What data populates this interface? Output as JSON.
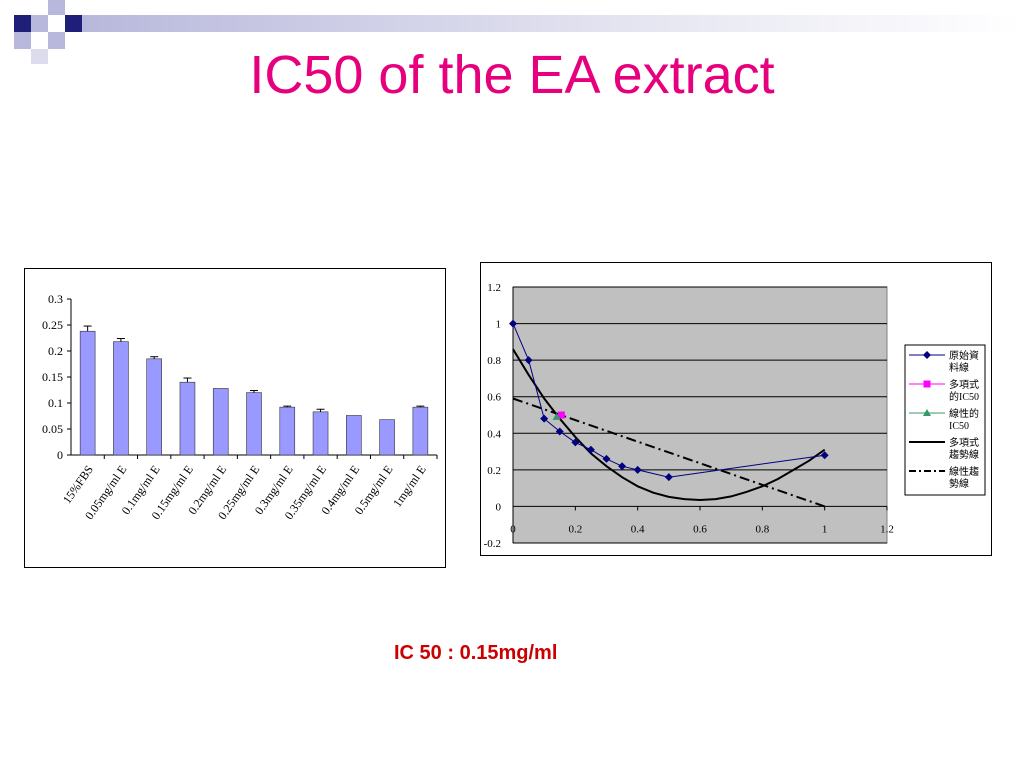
{
  "slide": {
    "title": "IC50 of the EA extract",
    "result": "IC 50 : 0.15mg/ml"
  },
  "colors": {
    "title": "#e6007e",
    "result": "#cc0000",
    "bar_fill": "#9999ff",
    "plot_bg": "#c0c0c0",
    "deco_navy": "#1f1f7a",
    "deco_light": "#b8b8dc"
  },
  "chart_data": [
    {
      "type": "bar",
      "categories": [
        "15%FBS",
        "0.05mg/ml E",
        "0.1mg/ml E",
        "0.15mg/ml E",
        "0.2mg/ml E",
        "0.25mg/ml E",
        "0.3mg/ml E",
        "0.35mg/ml E",
        "0.4mg/ml E",
        "0.5mg/ml E",
        "1mg/ml E"
      ],
      "values": [
        0.238,
        0.218,
        0.185,
        0.14,
        0.128,
        0.12,
        0.092,
        0.083,
        0.076,
        0.068,
        0.092
      ],
      "errors": [
        0.01,
        0.006,
        0.004,
        0.008,
        0.0,
        0.004,
        0.002,
        0.005,
        0.0,
        0.0,
        0.002
      ],
      "yticks": [
        "0",
        "0.05",
        "0.1",
        "0.15",
        "0.2",
        "0.25",
        "0.3"
      ],
      "ylim": [
        0,
        0.3
      ],
      "grid": false,
      "legend": "none"
    },
    {
      "type": "line",
      "xlim": [
        0,
        1.2
      ],
      "ylim": [
        -0.2,
        1.2
      ],
      "xticks": [
        "0",
        "0.2",
        "0.4",
        "0.6",
        "0.8",
        "1",
        "1.2"
      ],
      "yticks": [
        "-0.2",
        "0",
        "0.2",
        "0.4",
        "0.6",
        "0.8",
        "1",
        "1.2"
      ],
      "grid": true,
      "legend_position": "right",
      "series": [
        {
          "name": "原始資料線",
          "color": "#000080",
          "marker": "diamond",
          "points": [
            [
              0,
              1.0
            ],
            [
              0.05,
              0.8
            ],
            [
              0.1,
              0.48
            ],
            [
              0.15,
              0.41
            ],
            [
              0.2,
              0.35
            ],
            [
              0.25,
              0.31
            ],
            [
              0.3,
              0.26
            ],
            [
              0.35,
              0.22
            ],
            [
              0.4,
              0.2
            ],
            [
              0.5,
              0.16
            ],
            [
              1.0,
              0.28
            ]
          ]
        },
        {
          "name": "多項式的IC50",
          "color": "#ff00ff",
          "marker": "square",
          "points": [
            [
              0.155,
              0.5
            ]
          ]
        },
        {
          "name": "線性的IC50",
          "color": "#339966",
          "marker": "triangle",
          "points": [
            [
              0.14,
              0.49
            ]
          ]
        },
        {
          "name": "多項式趨勢線",
          "color": "#000000",
          "line": "solid",
          "points": [
            [
              0,
              0.86
            ],
            [
              0.05,
              0.72
            ],
            [
              0.1,
              0.59
            ],
            [
              0.15,
              0.48
            ],
            [
              0.2,
              0.38
            ],
            [
              0.25,
              0.29
            ],
            [
              0.3,
              0.22
            ],
            [
              0.35,
              0.16
            ],
            [
              0.4,
              0.11
            ],
            [
              0.45,
              0.075
            ],
            [
              0.5,
              0.052
            ],
            [
              0.55,
              0.04
            ],
            [
              0.6,
              0.035
            ],
            [
              0.65,
              0.04
            ],
            [
              0.7,
              0.055
            ],
            [
              0.75,
              0.08
            ],
            [
              0.8,
              0.11
            ],
            [
              0.85,
              0.15
            ],
            [
              0.9,
              0.2
            ],
            [
              0.95,
              0.25
            ],
            [
              1.0,
              0.31
            ]
          ]
        },
        {
          "name": "線性趨勢線",
          "color": "#000000",
          "line": "dashdot",
          "points": [
            [
              0,
              0.59
            ],
            [
              1.0,
              0.0
            ]
          ]
        }
      ]
    }
  ]
}
